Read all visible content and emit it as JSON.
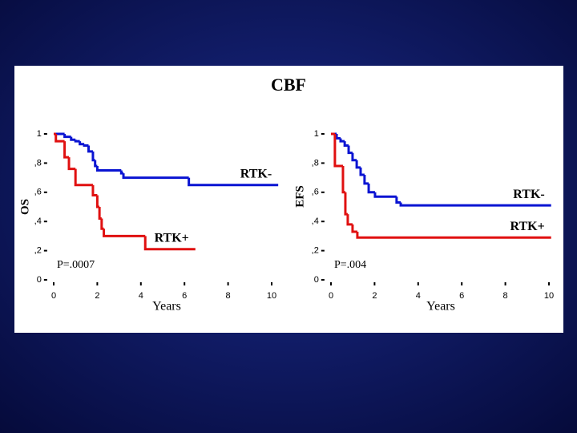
{
  "title": "CBF",
  "chart_data": [
    {
      "type": "line",
      "step": true,
      "x_label": "Years",
      "y_label": "OS",
      "xlim": [
        -0.3,
        10.5
      ],
      "ylim": [
        0,
        1.02
      ],
      "xticks": [
        0,
        2,
        4,
        6,
        8,
        10
      ],
      "yticks": [
        {
          "value": 0,
          "label": "0"
        },
        {
          "value": 0.2,
          "label": ",2"
        },
        {
          "value": 0.4,
          "label": ",4"
        },
        {
          "value": 0.6,
          "label": ",6"
        },
        {
          "value": 0.8,
          "label": ",8"
        },
        {
          "value": 1,
          "label": "1"
        }
      ],
      "annotation": "P=.0007",
      "series": [
        {
          "name": "RTK-",
          "color": "#0a14d2",
          "x": [
            0,
            0.5,
            0.8,
            1.0,
            1.2,
            1.4,
            1.6,
            1.8,
            1.9,
            2.0,
            3.1,
            3.2,
            6.2,
            10.3
          ],
          "values": [
            1,
            0.98,
            0.96,
            0.95,
            0.93,
            0.92,
            0.88,
            0.82,
            0.78,
            0.75,
            0.73,
            0.7,
            0.65,
            0.65
          ]
        },
        {
          "name": "RTK+",
          "color": "#e01010",
          "x": [
            0,
            0.1,
            0.5,
            0.7,
            1.0,
            1.8,
            2.0,
            2.1,
            2.2,
            2.3,
            4.2,
            6.5
          ],
          "values": [
            1,
            0.95,
            0.84,
            0.76,
            0.65,
            0.58,
            0.5,
            0.42,
            0.35,
            0.3,
            0.21,
            0.21
          ]
        }
      ]
    },
    {
      "type": "line",
      "step": true,
      "x_label": "Years",
      "y_label": "EFS",
      "xlim": [
        -0.3,
        10.5
      ],
      "ylim": [
        0,
        1.02
      ],
      "xticks": [
        0,
        2,
        4,
        6,
        8,
        10
      ],
      "yticks": [
        {
          "value": 0,
          "label": "0"
        },
        {
          "value": 0.2,
          "label": ",2"
        },
        {
          "value": 0.4,
          "label": ",4"
        },
        {
          "value": 0.6,
          "label": ",6"
        },
        {
          "value": 0.8,
          "label": ",8"
        },
        {
          "value": 1,
          "label": "1"
        }
      ],
      "annotation": "P=.004",
      "series": [
        {
          "name": "RTK-",
          "color": "#0a14d2",
          "x": [
            0,
            0.26,
            0.44,
            0.63,
            0.81,
            0.99,
            1.18,
            1.36,
            1.54,
            1.73,
            2.02,
            3.01,
            3.2,
            10.1
          ],
          "values": [
            1,
            0.97,
            0.95,
            0.92,
            0.87,
            0.82,
            0.77,
            0.72,
            0.66,
            0.6,
            0.57,
            0.53,
            0.51,
            0.51
          ]
        },
        {
          "name": "RTK+",
          "color": "#e01010",
          "x": [
            0,
            0.18,
            0.55,
            0.66,
            0.77,
            0.99,
            1.21,
            10.1
          ],
          "values": [
            1,
            0.78,
            0.6,
            0.45,
            0.38,
            0.33,
            0.29,
            0.29
          ]
        }
      ]
    }
  ]
}
